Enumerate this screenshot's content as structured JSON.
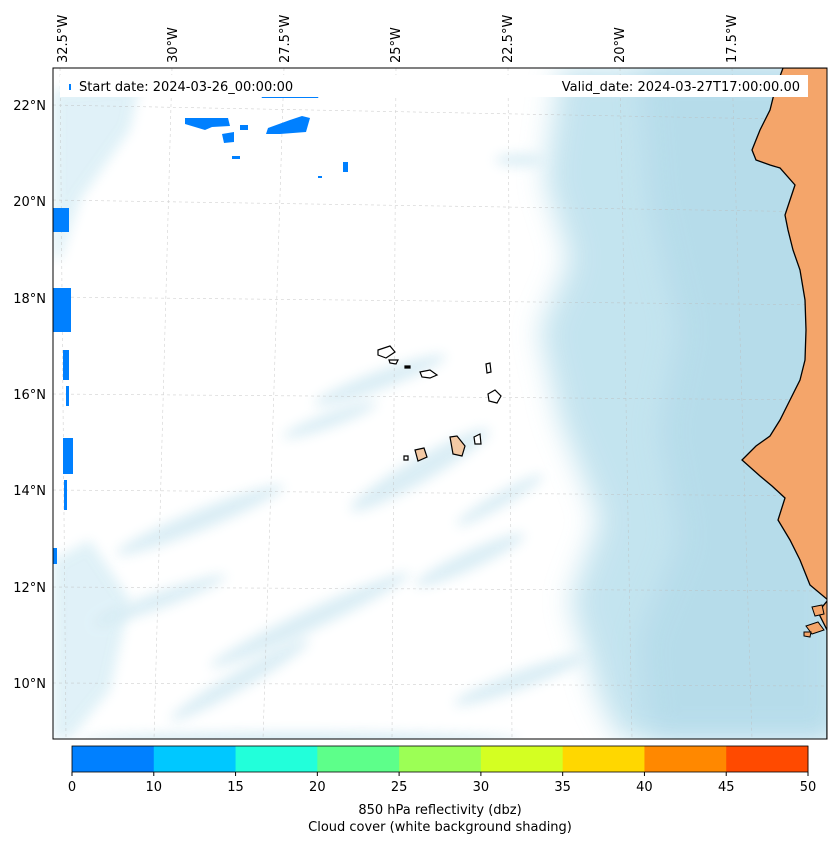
{
  "header": {
    "start_date": "Start date: 2024-03-26_00:00:00",
    "valid_date": "Valid_date: 2024-03-27T17:00:00.00"
  },
  "map": {
    "longitude_labels": [
      "32.5°W",
      "30°W",
      "27.5°W",
      "25°W",
      "22.5°W",
      "20°W",
      "17.5°W"
    ],
    "latitude_labels": [
      "22°N",
      "20°N",
      "18°N",
      "16°N",
      "14°N",
      "12°N",
      "10°N"
    ],
    "colors": {
      "land": "#f4a56a",
      "island_fill": "#f3c9a4",
      "cloud": "#add8e6",
      "reflectivity_low": "#0080ff"
    }
  },
  "colorbar": {
    "ticks": [
      "0",
      "10",
      "15",
      "20",
      "25",
      "30",
      "35",
      "40",
      "45",
      "50"
    ],
    "colors": [
      "#0080ff",
      "#00c8ff",
      "#22ffda",
      "#5dff8a",
      "#9cff55",
      "#d4ff22",
      "#ffd700",
      "#ff8800",
      "#ff4a00"
    ],
    "label_line1": "850 hPa reflectivity (dbz)",
    "label_line2": "Cloud cover (white background shading)"
  }
}
